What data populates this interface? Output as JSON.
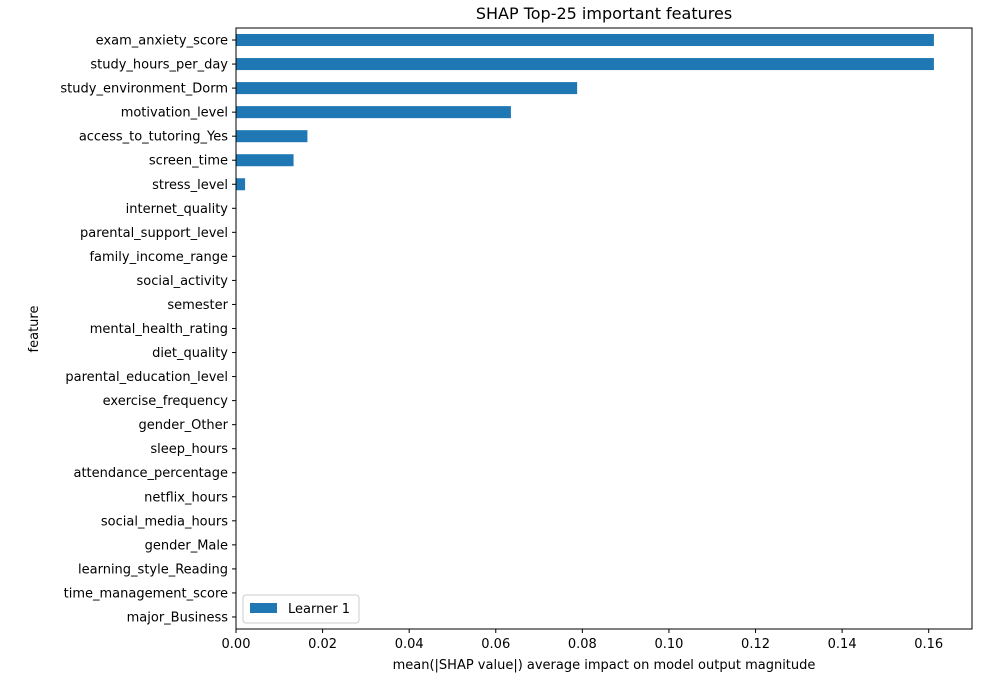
{
  "chart_data": {
    "type": "bar",
    "orientation": "horizontal",
    "title": "SHAP Top-25 important features",
    "xlabel": "mean(|SHAP value|) average impact on model output magnitude",
    "ylabel": "feature",
    "xlim": [
      0,
      0.17
    ],
    "xticks": [
      "0.00",
      "0.02",
      "0.04",
      "0.06",
      "0.08",
      "0.10",
      "0.12",
      "0.14",
      "0.16"
    ],
    "xtick_values": [
      0,
      0.02,
      0.04,
      0.06,
      0.08,
      0.1,
      0.12,
      0.14,
      0.16
    ],
    "grid": false,
    "legend_position": "lower-left",
    "categories": [
      "exam_anxiety_score",
      "study_hours_per_day",
      "study_environment_Dorm",
      "motivation_level",
      "access_to_tutoring_Yes",
      "screen_time",
      "stress_level",
      "internet_quality",
      "parental_support_level",
      "family_income_range",
      "social_activity",
      "semester",
      "mental_health_rating",
      "diet_quality",
      "parental_education_level",
      "exercise_frequency",
      "gender_Other",
      "sleep_hours",
      "attendance_percentage",
      "netflix_hours",
      "social_media_hours",
      "gender_Male",
      "learning_style_Reading",
      "time_management_score",
      "major_Business"
    ],
    "series": [
      {
        "name": "Learner 1",
        "color": "#1f77b4",
        "values": [
          0.1612,
          0.1612,
          0.0788,
          0.0635,
          0.0165,
          0.0133,
          0.0021,
          0,
          0,
          0,
          0,
          0,
          0,
          0,
          0,
          0,
          0,
          0,
          0,
          0,
          0,
          0,
          0,
          0,
          0
        ]
      }
    ]
  }
}
